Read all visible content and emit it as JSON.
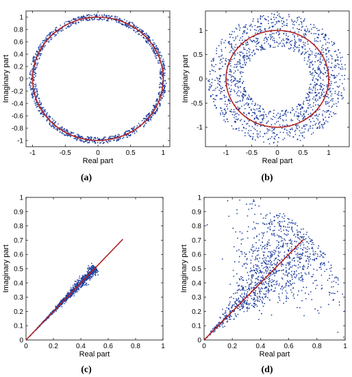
{
  "chart_data": [
    {
      "panel_label": "(a)",
      "type": "scatter",
      "xlabel": "Real part",
      "ylabel": "Imaginary part",
      "xlim": [
        -1.1,
        1.1
      ],
      "ylim": [
        -1.1,
        1.1
      ],
      "xticks": [
        -1,
        -0.5,
        0,
        0.5,
        1
      ],
      "yticks": [
        -1,
        -0.8,
        -0.6,
        -0.4,
        -0.2,
        0,
        0.2,
        0.4,
        0.6,
        0.8,
        1
      ],
      "scatter": {
        "shape": "ring",
        "radius_min": 0.95,
        "radius_max": 1.05,
        "count": 1200,
        "color": "#1f3f9f"
      },
      "reference": {
        "shape": "unit-circle",
        "radius": 1,
        "color": "#b22222"
      }
    },
    {
      "panel_label": "(b)",
      "type": "scatter",
      "xlabel": "Real part",
      "ylabel": "Imaginary part",
      "xlim": [
        -1.4,
        1.4
      ],
      "ylim": [
        -1.4,
        1.4
      ],
      "xticks": [
        -1,
        -0.5,
        0,
        0.5,
        1
      ],
      "yticks": [
        -1,
        -0.5,
        0,
        0.5,
        1
      ],
      "scatter": {
        "shape": "ring",
        "radius_min": 0.65,
        "radius_max": 1.35,
        "count": 1500,
        "color": "#1f3f9f"
      },
      "reference": {
        "shape": "unit-circle",
        "radius": 1,
        "color": "#b22222"
      }
    },
    {
      "panel_label": "(c)",
      "type": "scatter",
      "xlabel": "Real part",
      "ylabel": "Imaginary part",
      "xlim": [
        0,
        1
      ],
      "ylim": [
        0,
        1
      ],
      "xticks": [
        0,
        0.2,
        0.4,
        0.6,
        0.8,
        1
      ],
      "yticks": [
        0,
        0.1,
        0.2,
        0.3,
        0.4,
        0.5,
        0.6,
        0.7,
        0.8,
        0.9,
        1
      ],
      "scatter": {
        "shape": "narrow-wedge",
        "max_magnitude": 0.72,
        "angle_spread_deg": 3,
        "count": 900,
        "color": "#1f3f9f"
      },
      "reference": {
        "shape": "line",
        "from": [
          0,
          0
        ],
        "to": [
          0.707,
          0.707
        ],
        "color": "#b22222"
      }
    },
    {
      "panel_label": "(d)",
      "type": "scatter",
      "xlabel": "Real part",
      "ylabel": "Imaginary part",
      "xlim": [
        0,
        1
      ],
      "ylim": [
        0,
        1
      ],
      "xticks": [
        0,
        0.2,
        0.4,
        0.6,
        0.8,
        1
      ],
      "yticks": [
        0,
        0.1,
        0.2,
        0.3,
        0.4,
        0.5,
        0.6,
        0.7,
        0.8,
        0.9,
        1
      ],
      "scatter": {
        "shape": "wide-wedge",
        "max_magnitude": 1.05,
        "angle_spread_deg": 22,
        "count": 1200,
        "color": "#1f3f9f"
      },
      "reference": {
        "shape": "line",
        "from": [
          0,
          0
        ],
        "to": [
          0.707,
          0.707
        ],
        "color": "#b22222"
      }
    }
  ]
}
